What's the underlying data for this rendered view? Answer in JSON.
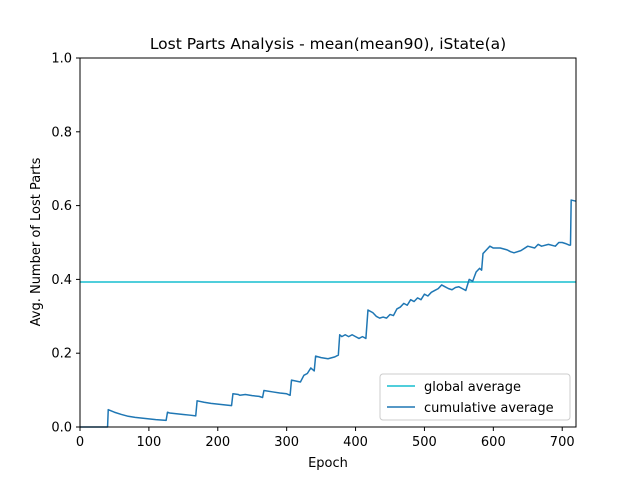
{
  "chart_data": {
    "type": "line",
    "title": "Lost Parts Analysis - mean(mean90), iState(a)",
    "xlabel": "Epoch",
    "ylabel": "Avg. Number of Lost Parts",
    "xlim": [
      0,
      720
    ],
    "ylim": [
      0.0,
      1.0
    ],
    "x_ticks": [
      0,
      100,
      200,
      300,
      400,
      500,
      600,
      700
    ],
    "y_ticks": [
      "0.0",
      "0.2",
      "0.4",
      "0.6",
      "0.8",
      "1.0"
    ],
    "grid": false,
    "legend": "lower-right",
    "series": [
      {
        "name": "global average",
        "color": "#17becf",
        "x": [
          0,
          720
        ],
        "y": [
          0.393,
          0.393
        ]
      },
      {
        "name": "cumulative average",
        "color": "#1f77b4",
        "x": [
          0,
          40,
          41,
          50,
          60,
          70,
          80,
          90,
          100,
          110,
          125,
          127,
          130,
          140,
          150,
          160,
          168,
          170,
          180,
          190,
          200,
          210,
          220,
          222,
          230,
          232,
          240,
          250,
          260,
          265,
          267,
          280,
          290,
          300,
          305,
          307,
          320,
          325,
          330,
          335,
          340,
          342,
          350,
          360,
          370,
          375,
          377,
          380,
          385,
          390,
          395,
          400,
          405,
          410,
          415,
          418,
          425,
          430,
          435,
          440,
          445,
          450,
          455,
          460,
          465,
          470,
          475,
          480,
          485,
          490,
          495,
          500,
          505,
          510,
          515,
          520,
          525,
          530,
          535,
          540,
          545,
          550,
          555,
          560,
          565,
          570,
          575,
          580,
          583,
          585,
          590,
          595,
          600,
          610,
          620,
          625,
          630,
          640,
          650,
          660,
          665,
          670,
          680,
          690,
          695,
          700,
          705,
          710,
          712,
          713,
          720
        ],
        "y": [
          0.0,
          0.0,
          0.047,
          0.04,
          0.034,
          0.029,
          0.026,
          0.024,
          0.022,
          0.02,
          0.018,
          0.04,
          0.038,
          0.036,
          0.034,
          0.032,
          0.03,
          0.071,
          0.067,
          0.064,
          0.062,
          0.06,
          0.058,
          0.09,
          0.088,
          0.086,
          0.088,
          0.085,
          0.083,
          0.08,
          0.099,
          0.095,
          0.092,
          0.09,
          0.086,
          0.127,
          0.122,
          0.14,
          0.145,
          0.16,
          0.152,
          0.192,
          0.188,
          0.185,
          0.19,
          0.195,
          0.25,
          0.245,
          0.25,
          0.245,
          0.25,
          0.245,
          0.24,
          0.245,
          0.24,
          0.317,
          0.31,
          0.3,
          0.295,
          0.298,
          0.295,
          0.305,
          0.302,
          0.32,
          0.325,
          0.335,
          0.33,
          0.345,
          0.34,
          0.35,
          0.345,
          0.36,
          0.355,
          0.365,
          0.37,
          0.375,
          0.385,
          0.38,
          0.375,
          0.372,
          0.378,
          0.38,
          0.375,
          0.37,
          0.4,
          0.395,
          0.42,
          0.43,
          0.425,
          0.47,
          0.48,
          0.49,
          0.485,
          0.485,
          0.48,
          0.475,
          0.472,
          0.478,
          0.49,
          0.485,
          0.495,
          0.49,
          0.495,
          0.49,
          0.5,
          0.5,
          0.497,
          0.493,
          0.493,
          0.615,
          0.612
        ]
      }
    ]
  }
}
